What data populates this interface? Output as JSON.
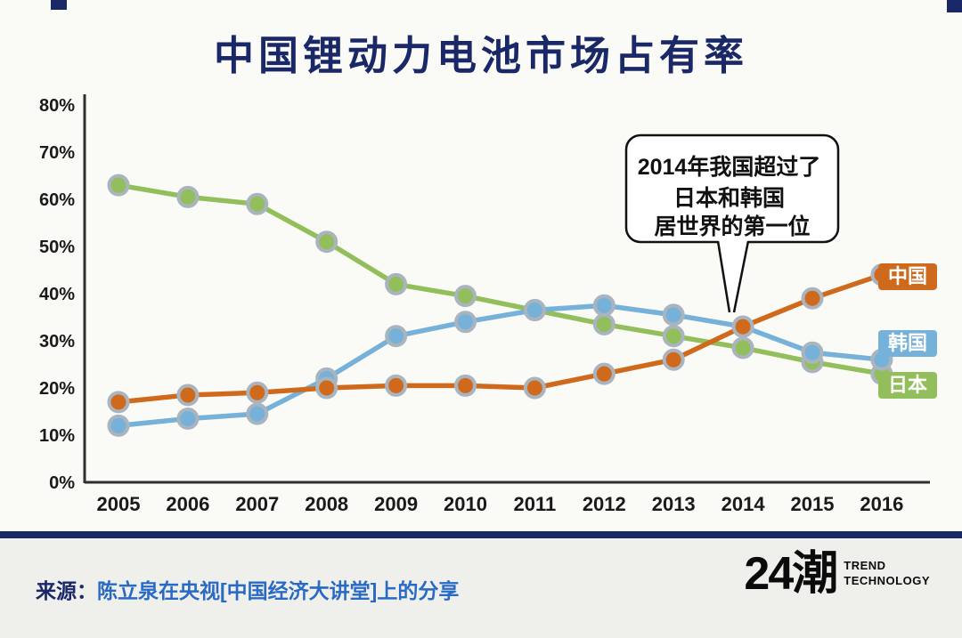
{
  "colors": {
    "navy": "#1a2868",
    "axis": "#2f2f2f",
    "tick_text": "#1a1a1a",
    "marker_ring": "#a9b4bf",
    "source_blue": "#2a6ac5",
    "china": "#cf6a1d",
    "korea": "#75b1d8",
    "japan": "#92bf5b"
  },
  "annotation": {
    "lines": [
      "2014年我国超过了",
      "日本和韩国",
      "居世界的第一位"
    ]
  },
  "chart_data": {
    "type": "line",
    "title": "中国锂动力电池市场占有率",
    "xlabel": "",
    "ylabel": "",
    "x": [
      2005,
      2006,
      2007,
      2008,
      2009,
      2010,
      2011,
      2012,
      2013,
      2014,
      2015,
      2016
    ],
    "series": [
      {
        "name": "中国",
        "color": "#cf6a1d",
        "values": [
          17,
          18.5,
          19,
          20,
          20.5,
          20.5,
          20,
          23,
          26,
          33,
          39,
          44
        ]
      },
      {
        "name": "韩国",
        "color": "#75b1d8",
        "values": [
          12,
          13.5,
          14.5,
          22,
          31,
          34,
          36.5,
          37.5,
          35.5,
          33,
          27.5,
          26
        ]
      },
      {
        "name": "日本",
        "color": "#92bf5b",
        "values": [
          63,
          60.5,
          59,
          51,
          42,
          39.5,
          36.5,
          33.5,
          31,
          28.5,
          25.5,
          23
        ]
      }
    ],
    "ylim": [
      0,
      80
    ],
    "yticks": [
      0,
      10,
      20,
      30,
      40,
      50,
      60,
      70,
      80
    ],
    "ytick_labels": [
      "0%",
      "10%",
      "20%",
      "30%",
      "40%",
      "50%",
      "60%",
      "70%",
      "80%"
    ],
    "grid": false,
    "legend_position": "right"
  },
  "footer": {
    "source_label": "来源：",
    "source_text": "陈立泉在央视[中国经济大讲堂]上的分享",
    "logo_text": "24潮",
    "logo_sub_line1": "TREND",
    "logo_sub_line2": "TECHNOLOGY"
  }
}
